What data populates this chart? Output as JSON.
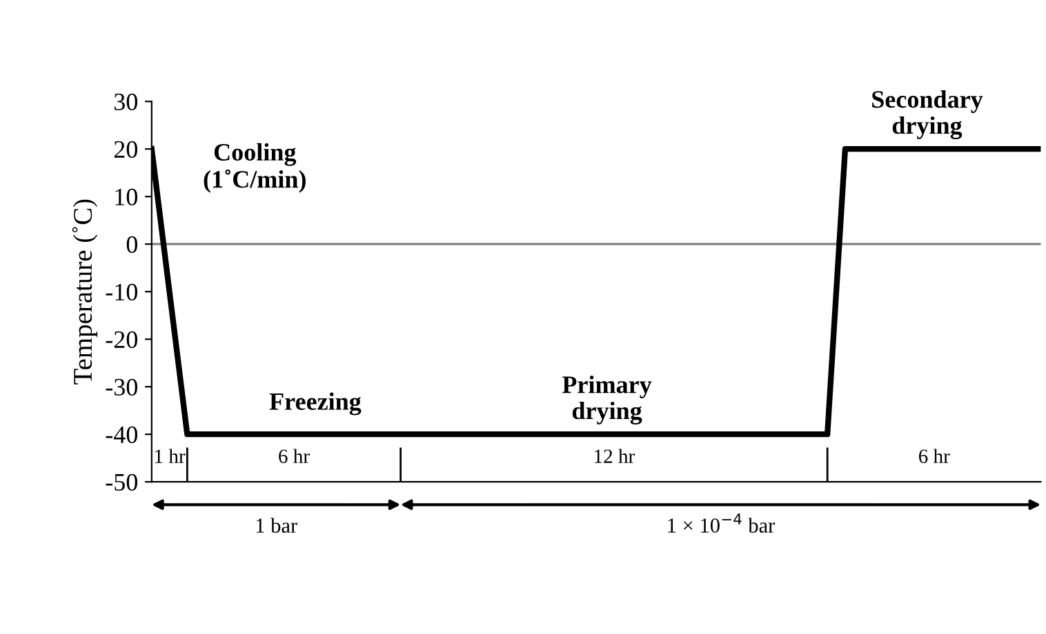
{
  "chart_data": {
    "type": "line",
    "ylabel": "Temperature (˚C)",
    "categories": [
      null,
      null,
      null,
      null,
      null,
      null,
      null,
      null,
      null,
      null,
      null,
      null,
      null,
      null,
      null,
      null,
      null,
      null,
      null,
      null,
      null,
      null,
      null,
      null,
      null,
      null,
      null,
      null,
      null,
      null,
      null,
      null,
      null,
      null,
      null,
      null,
      null,
      null,
      null,
      null,
      null,
      null,
      null,
      null,
      null,
      null,
      null,
      null,
      null,
      null,
      null
    ],
    "series": [
      {
        "color": "#000000",
        "values": [
          20,
          -10,
          -40,
          -40,
          -40,
          -40,
          -40,
          -40,
          -40,
          -40,
          -40,
          -40,
          -40,
          -40,
          -40,
          -40,
          -40,
          -40,
          -40,
          -40,
          -40,
          -40,
          -40,
          -40,
          -40,
          -40,
          -40,
          -40,
          -40,
          -40,
          -40,
          -40,
          -40,
          -40,
          -40,
          -40,
          -40,
          -40,
          -40,
          20,
          20,
          20,
          20,
          20,
          20,
          20,
          20,
          20,
          20,
          20,
          20
        ]
      }
    ],
    "ylim": [
      -50,
      30
    ],
    "yticks": [
      -50,
      -40,
      -30,
      -20,
      -10,
      0,
      10,
      20,
      30
    ],
    "tick_labels": "y",
    "grid": false,
    "legend": false,
    "marker": "none",
    "line_style": "solid",
    "ref_lines": [
      {
        "axis": "y",
        "value": 0,
        "color": "#808080"
      }
    ],
    "annotations": [
      "Cooling\n(1˚C/min)",
      "Freezing",
      "Primary\ndrying",
      "Secondary\ndrying",
      "1 hr",
      "6 hr",
      "12 hr",
      "6 hr",
      "1 bar",
      "1 × 10$^{−4}$ bar"
    ]
  }
}
